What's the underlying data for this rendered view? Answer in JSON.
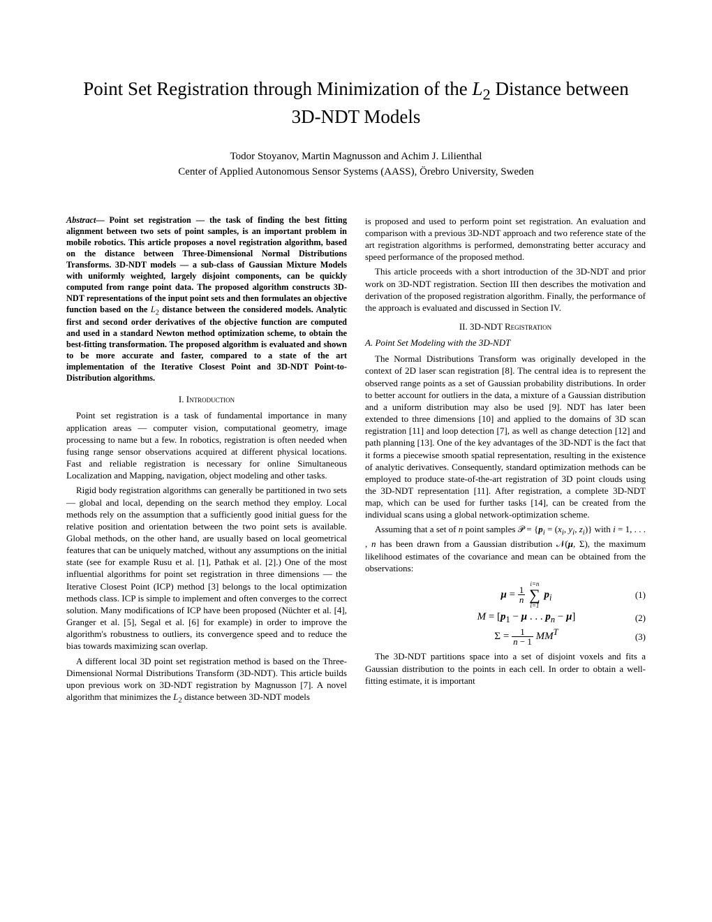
{
  "title": "Point Set Registration through Minimization of the L₂ Distance between 3D-NDT Models",
  "authors_line1": "Todor Stoyanov, Martin Magnusson and Achim J. Lilienthal",
  "authors_line2": "Center of Applied Autonomous Sensor Systems (AASS), Örebro University, Sweden",
  "abstract_label": "Abstract",
  "abstract_text": "— Point set registration — the task of finding the best fitting alignment between two sets of point samples, is an important problem in mobile robotics. This article proposes a novel registration algorithm, based on the distance between Three-Dimensional Normal Distributions Transforms. 3D-NDT models — a sub-class of Gaussian Mixture Models with uniformly weighted, largely disjoint components, can be quickly computed from range point data. The proposed algorithm constructs 3D-NDT representations of the input point sets and then formulates an objective function based on the L₂ distance between the considered models. Analytic first and second order derivatives of the objective function are computed and used in a standard Newton method optimization scheme, to obtain the best-fitting transformation. The proposed algorithm is evaluated and shown to be more accurate and faster, compared to a state of the art implementation of the Iterative Closest Point and 3D-NDT Point-to-Distribution algorithms.",
  "section1_num": "I.",
  "section1_title": "Introduction",
  "intro_p1": "Point set registration is a task of fundamental importance in many application areas — computer vision, computational geometry, image processing to name but a few. In robotics, registration is often needed when fusing range sensor observations acquired at different physical locations. Fast and reliable registration is necessary for online Simultaneous Localization and Mapping, navigation, object modeling and other tasks.",
  "intro_p2": "Rigid body registration algorithms can generally be partitioned in two sets — global and local, depending on the search method they employ. Local methods rely on the assumption that a sufficiently good initial guess for the relative position and orientation between the two point sets is available. Global methods, on the other hand, are usually based on local geometrical features that can be uniquely matched, without any assumptions on the initial state (see for example Rusu et al. [1], Pathak et al. [2].) One of the most influential algorithms for point set registration in three dimensions — the Iterative Closest Point (ICP) method [3] belongs to the local optimization methods class. ICP is simple to implement and often converges to the correct solution. Many modifications of ICP have been proposed (Nüchter et al. [4], Granger et al. [5], Segal et al. [6] for example) in order to improve the algorithm's robustness to outliers, its convergence speed and to reduce the bias towards maximizing scan overlap.",
  "intro_p3": "A different local 3D point set registration method is based on the Three-Dimensional Normal Distributions Transform (3D-NDT). This article builds upon previous work on 3D-NDT registration by Magnusson [7]. A novel algorithm that minimizes the L₂ distance between 3D-NDT models",
  "right_p1": "is proposed and used to perform point set registration. An evaluation and comparison with a previous 3D-NDT approach and two reference state of the art registration algorithms is performed, demonstrating better accuracy and speed performance of the proposed method.",
  "right_p2": "This article proceeds with a short introduction of the 3D-NDT and prior work on 3D-NDT registration. Section III then describes the motivation and derivation of the proposed registration algorithm. Finally, the performance of the approach is evaluated and discussed in Section IV.",
  "section2_num": "II.",
  "section2_title": "3D-NDT Registration",
  "subsection_a": "A. Point Set Modeling with the 3D-NDT",
  "ndt_p1": "The Normal Distributions Transform was originally developed in the context of 2D laser scan registration [8]. The central idea is to represent the observed range points as a set of Gaussian probability distributions. In order to better account for outliers in the data, a mixture of a Gaussian distribution and a uniform distribution may also be used [9]. NDT has later been extended to three dimensions [10] and applied to the domains of 3D scan registration [11] and loop detection [7], as well as change detection [12] and path planning [13]. One of the key advantages of the 3D-NDT is the fact that it forms a piecewise smooth spatial representation, resulting in the existence of analytic derivatives. Consequently, standard optimization methods can be employed to produce state-of-the-art registration of 3D point clouds using the 3D-NDT representation [11]. After registration, a complete 3D-NDT map, which can be used for further tasks [14], can be created from the individual scans using a global network-optimization scheme.",
  "ndt_p2_a": "Assuming that a set of ",
  "ndt_p2_b": " point samples ",
  "ndt_p2_c": " with ",
  "ndt_p2_d": " has been drawn from a Gaussian distribution ",
  "ndt_p2_e": ", the maximum likelihood estimates of the covariance and mean can be obtained from the observations:",
  "ndt_p3": "The 3D-NDT partitions space into a set of disjoint voxels and fits a Gaussian distribution to the points in each cell. In order to obtain a well-fitting estimate, it is important",
  "eq1_num": "(1)",
  "eq2_num": "(2)",
  "eq3_num": "(3)"
}
